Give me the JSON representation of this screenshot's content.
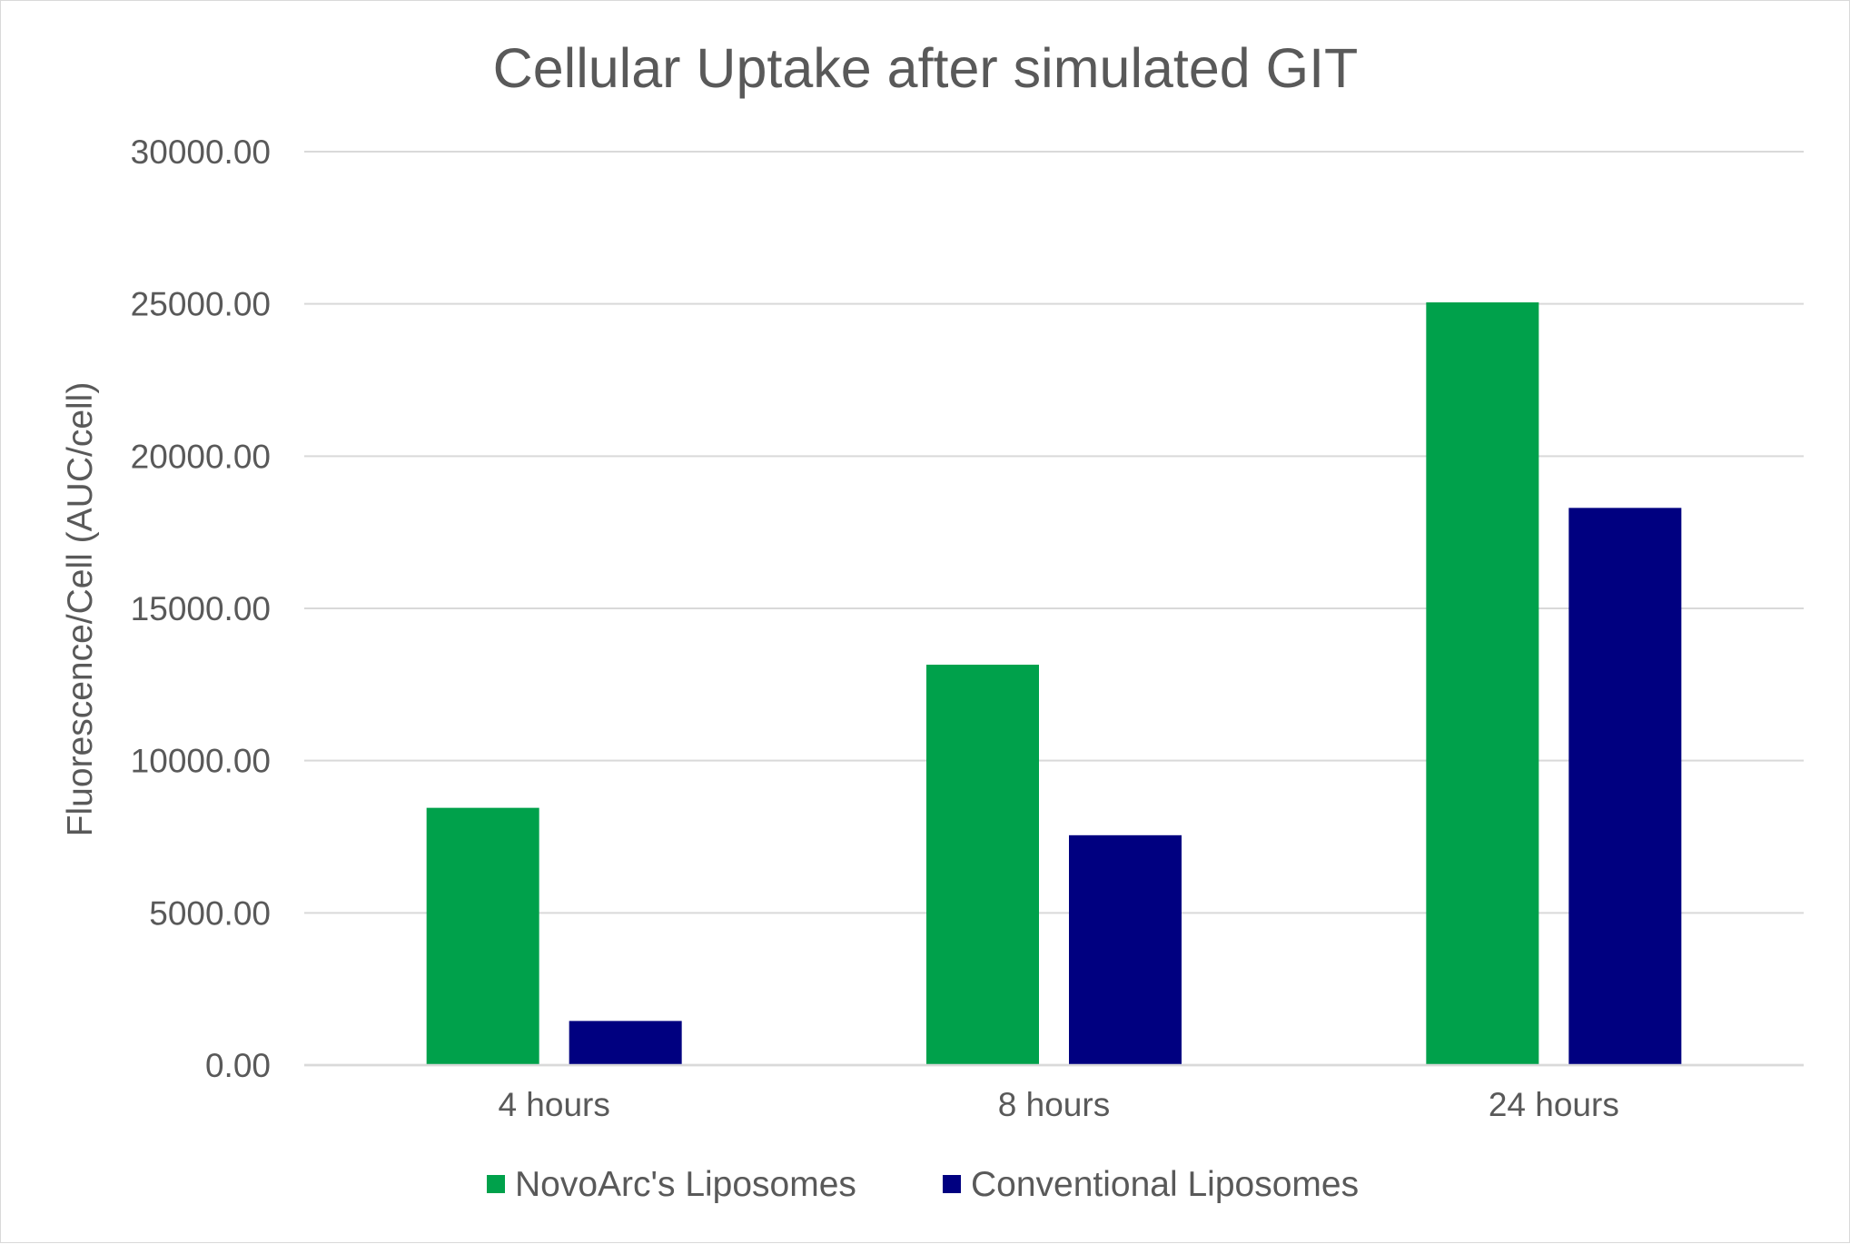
{
  "chart_data": {
    "type": "bar",
    "title": "Cellular Uptake after simulated GIT",
    "xlabel": "",
    "ylabel": "Fluorescence/Cell (AUC/cell)",
    "categories": [
      "4 hours",
      "8 hours",
      "24 hours"
    ],
    "series": [
      {
        "name": "NovoArc's Liposomes",
        "color": "#00a14b",
        "values": [
          8450,
          13150,
          25050
        ]
      },
      {
        "name": "Conventional Liposomes",
        "color": "#000080",
        "values": [
          1450,
          7550,
          18300
        ]
      }
    ],
    "ylim": [
      0,
      30000
    ],
    "yticks": [
      "0.00",
      "5000.00",
      "10000.00",
      "15000.00",
      "20000.00",
      "25000.00",
      "30000.00"
    ],
    "ytick_values": [
      0,
      5000,
      10000,
      15000,
      20000,
      25000,
      30000
    ],
    "grid": true,
    "legend_position": "bottom"
  }
}
